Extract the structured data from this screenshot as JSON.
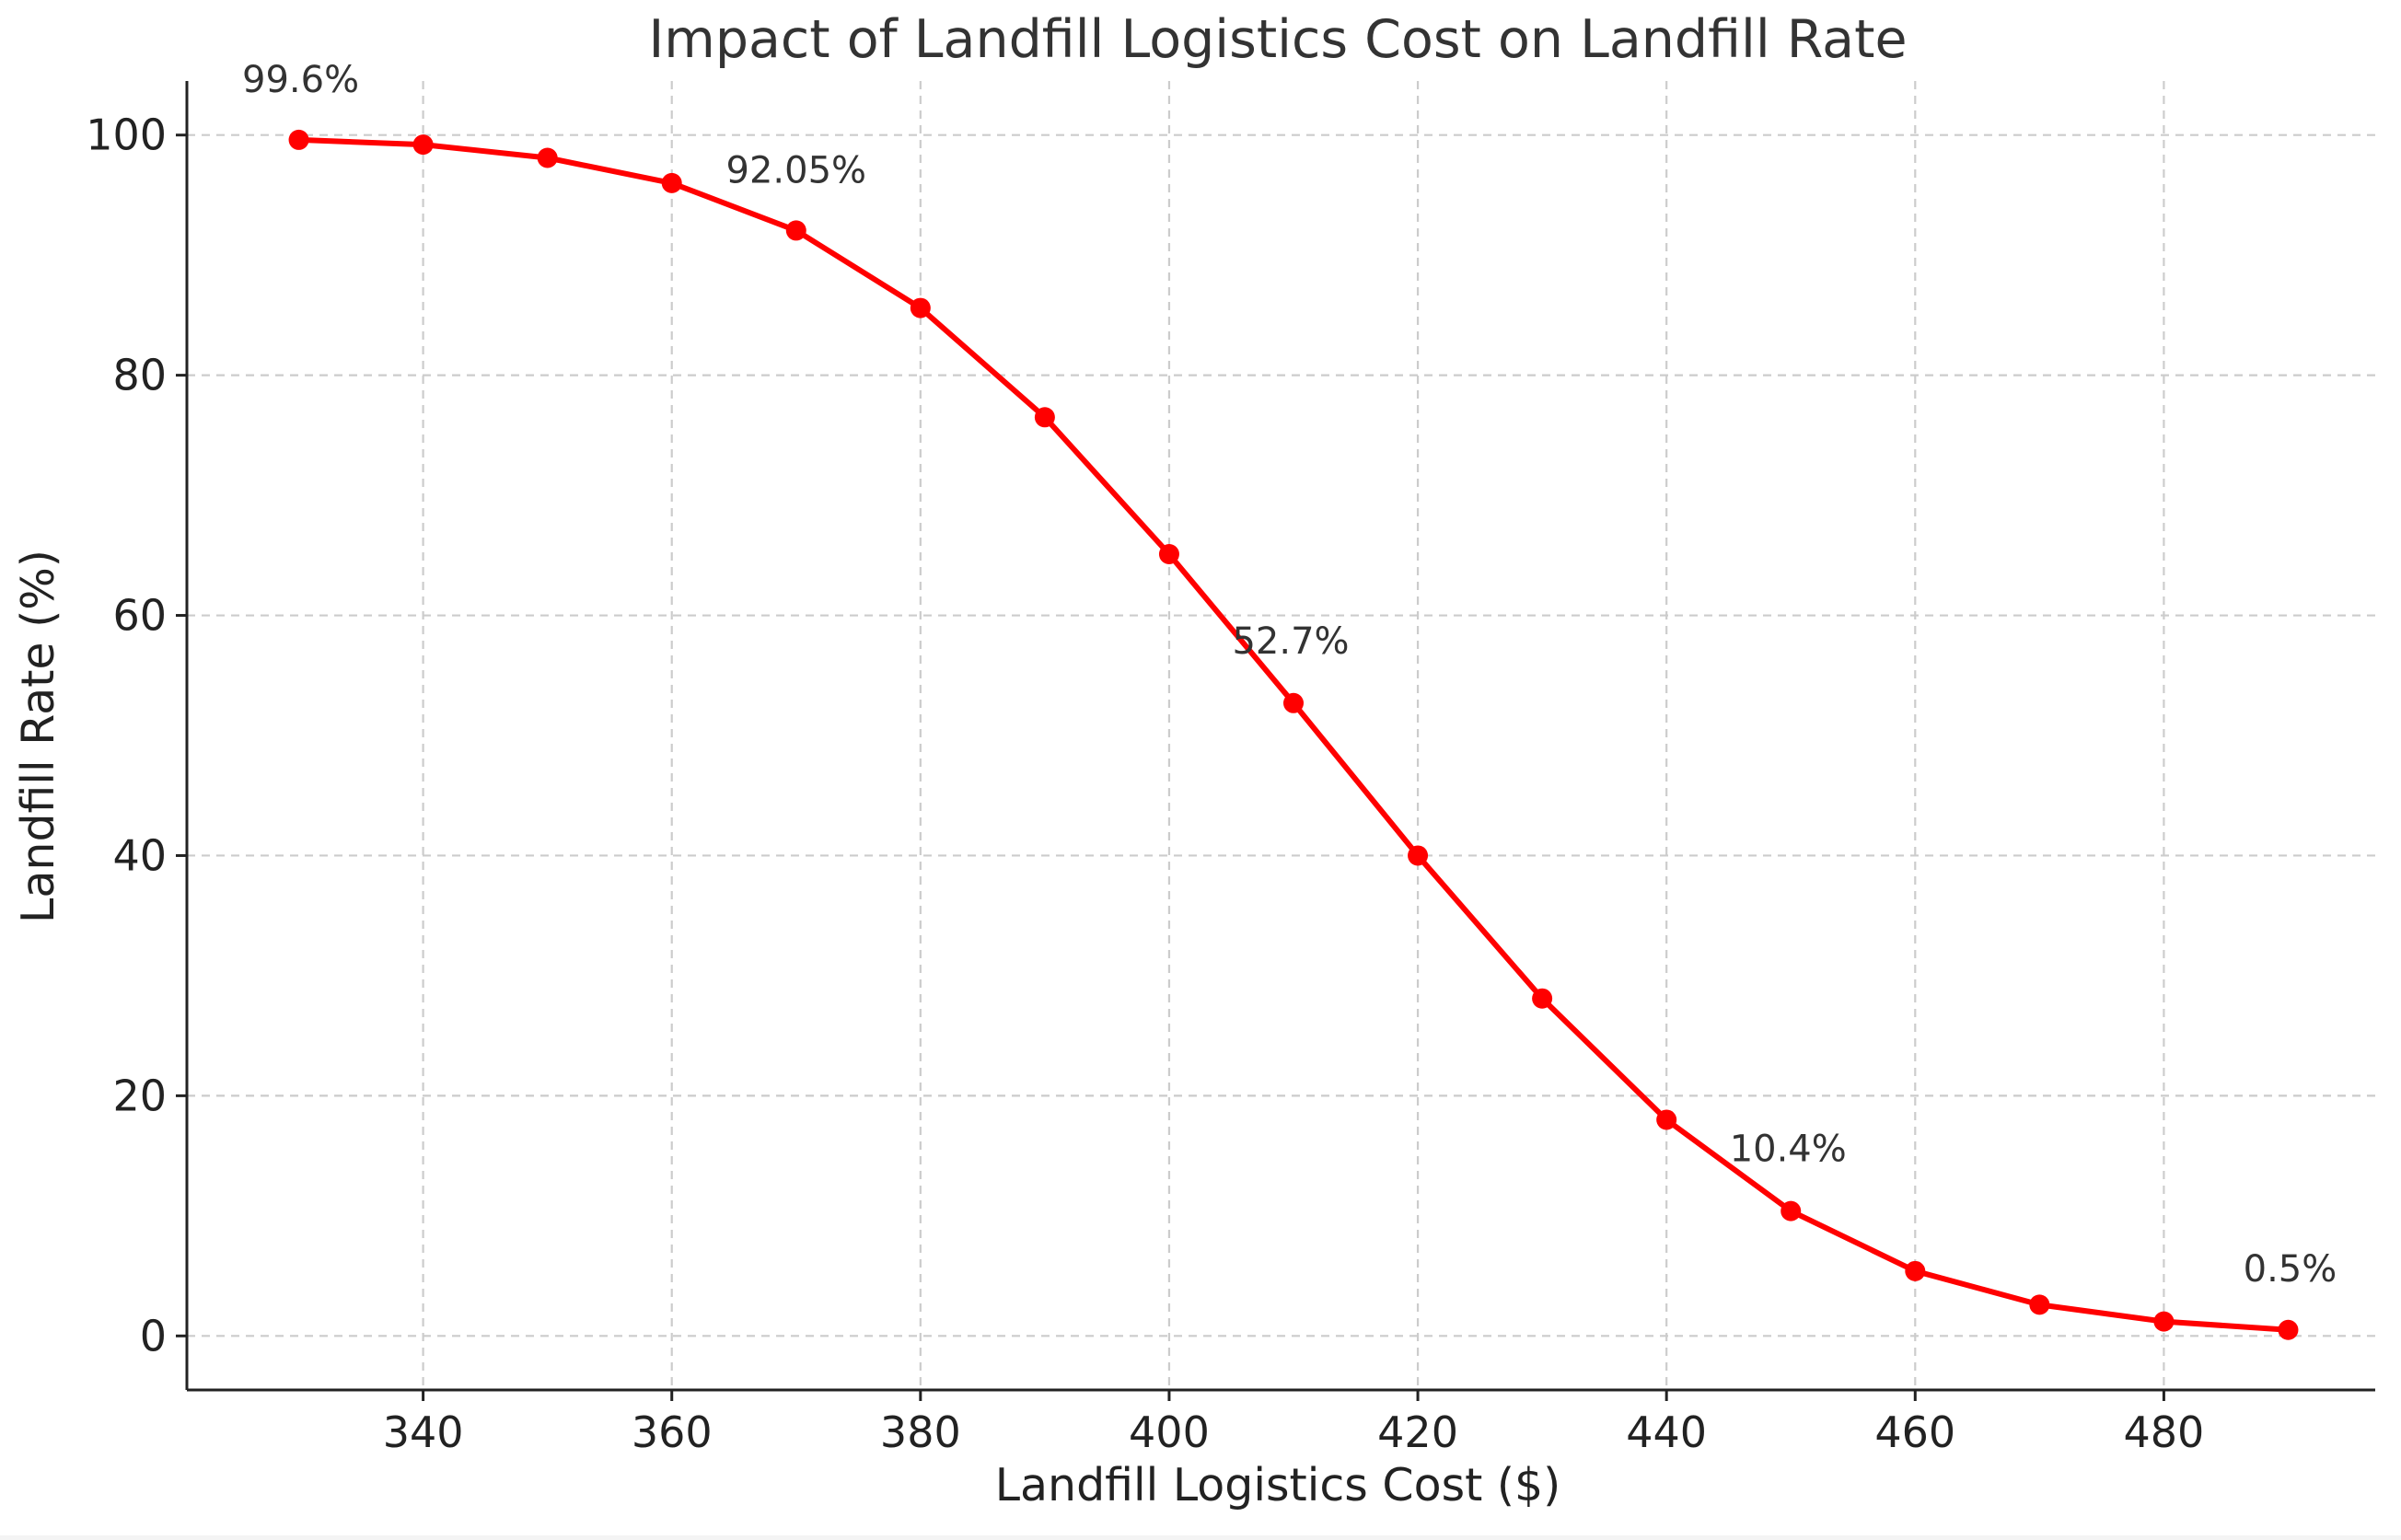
{
  "chart_data": {
    "type": "line",
    "title": "Impact of Landfill Logistics Cost on Landfill Rate",
    "xlabel": "Landfill Logistics Cost ($)",
    "ylabel": "Landfill Rate (%)",
    "xlim": [
      321,
      497
    ],
    "ylim": [
      -4.5,
      104.5
    ],
    "xticks": [
      340,
      360,
      380,
      400,
      420,
      440,
      460,
      480
    ],
    "yticks": [
      0,
      20,
      40,
      60,
      80,
      100
    ],
    "grid": true,
    "series": [
      {
        "name": "Landfill Rate",
        "color": "#ff0000",
        "x": [
          330,
          340,
          350,
          360,
          370,
          380,
          390,
          400,
          410,
          420,
          430,
          440,
          450,
          460,
          470,
          480,
          490
        ],
        "y": [
          99.6,
          99.2,
          98.1,
          96.0,
          92.05,
          85.6,
          76.5,
          65.1,
          52.7,
          40.0,
          28.1,
          18.0,
          10.4,
          5.4,
          2.6,
          1.2,
          0.5
        ]
      }
    ],
    "annotations": [
      {
        "x": 330,
        "y": 99.6,
        "text": "99.6%"
      },
      {
        "x": 370,
        "y": 92.05,
        "text": "92.05%"
      },
      {
        "x": 410,
        "y": 52.7,
        "text": "52.7%"
      },
      {
        "x": 450,
        "y": 10.4,
        "text": "10.4%"
      },
      {
        "x": 490,
        "y": 0.5,
        "text": "0.5%"
      }
    ]
  }
}
